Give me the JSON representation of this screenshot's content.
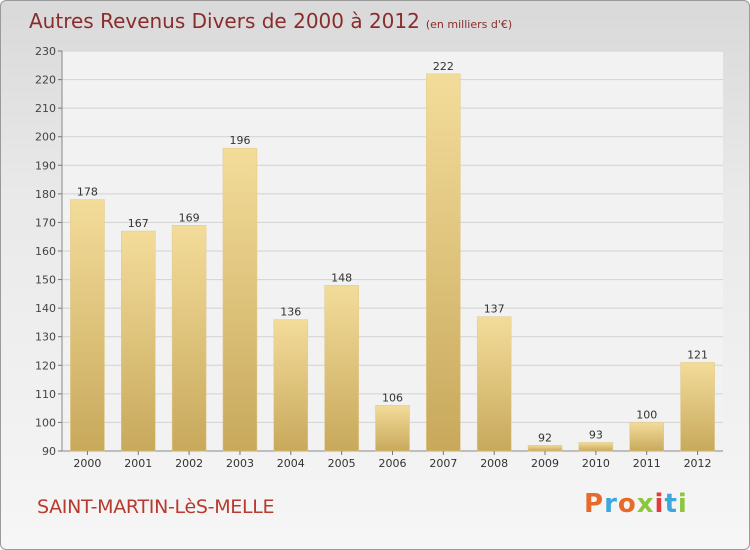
{
  "title": "Autres Revenus Divers de 2000 à 2012",
  "subtitle": "(en milliers d'€)",
  "place": "SAINT-MARTIN-LèS-MELLE",
  "logo": {
    "text": "Proxiti",
    "colors": [
      "#e86a2b",
      "#3fa7dc",
      "#e86a2b",
      "#8cc63f",
      "#e33b3b",
      "#3fa7dc",
      "#8cc63f"
    ]
  },
  "colors": {
    "bar_light": "#f3dc9a",
    "bar_dark": "#c8a95c",
    "title": "#8a2c2c",
    "place": "#b73a2e"
  },
  "chart_data": {
    "type": "bar",
    "categories": [
      "2000",
      "2001",
      "2002",
      "2003",
      "2004",
      "2005",
      "2006",
      "2007",
      "2008",
      "2009",
      "2010",
      "2011",
      "2012"
    ],
    "values": [
      178,
      167,
      169,
      196,
      136,
      148,
      106,
      222,
      137,
      92,
      93,
      100,
      121
    ],
    "ylim": [
      90,
      230
    ],
    "yticks": [
      90,
      100,
      110,
      120,
      130,
      140,
      150,
      160,
      170,
      180,
      190,
      200,
      210,
      220,
      230
    ],
    "grid": true,
    "data_labels": true
  }
}
